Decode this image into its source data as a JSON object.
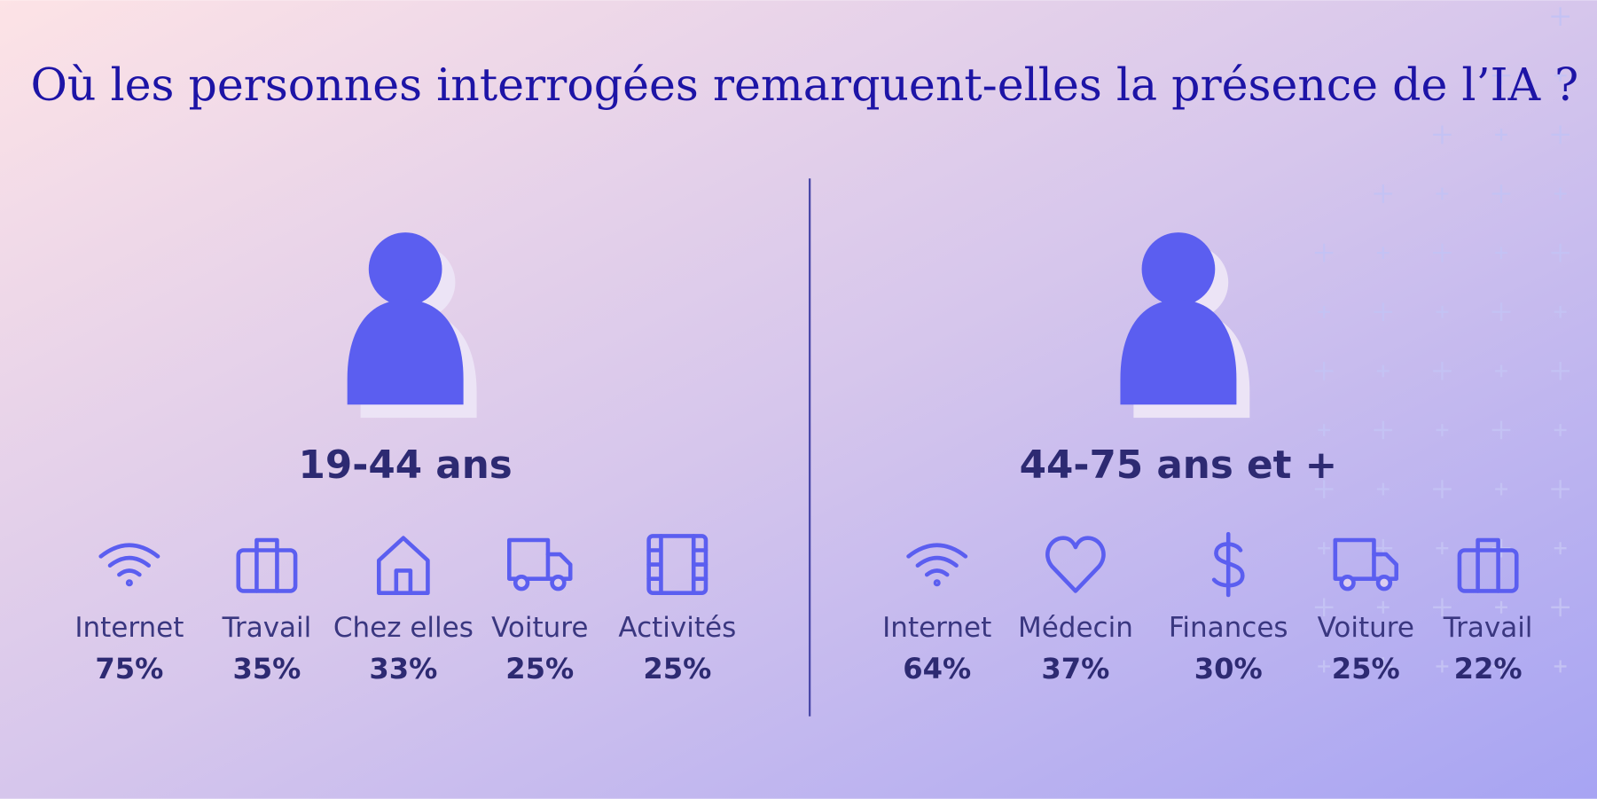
{
  "title": "Où les personnes interrogées remarquent-elles la présence de l’IA ?",
  "groups": [
    {
      "label": "19-44 ans",
      "items": [
        {
          "label": "Internet",
          "value": "75%"
        },
        {
          "label": "Travail",
          "value": "35%"
        },
        {
          "label": "Chez elles",
          "value": "33%"
        },
        {
          "label": "Voiture",
          "value": "25%"
        },
        {
          "label": "Activités",
          "value": "25%"
        }
      ]
    },
    {
      "label": "44-75 ans et +",
      "items": [
        {
          "label": "Internet",
          "value": "64%"
        },
        {
          "label": "Médecin",
          "value": "37%"
        },
        {
          "label": "Finances",
          "value": "30%"
        },
        {
          "label": "Voiture",
          "value": "25%"
        },
        {
          "label": "Travail",
          "value": "22%"
        }
      ]
    }
  ]
}
